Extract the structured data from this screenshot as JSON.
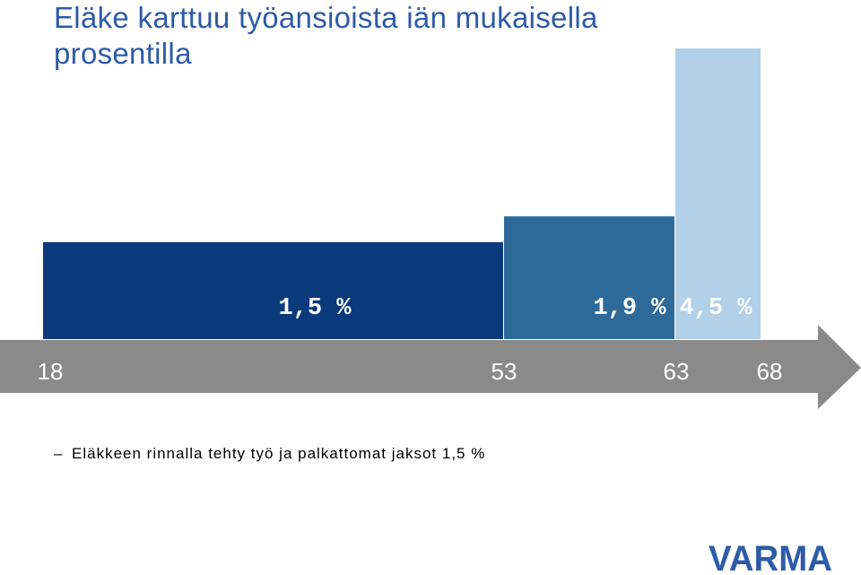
{
  "title": "Eläke karttuu työansioista iän mukaisella prosentilla",
  "chart_data": {
    "type": "bar",
    "x_ticks": [
      "18",
      "53",
      "63",
      "68"
    ],
    "bars": [
      {
        "from_age": 18,
        "to_age": 53,
        "rate": 1.5,
        "label": "1,5 %",
        "color": "#0a3a7c",
        "label_color": "#ffffff"
      },
      {
        "from_age": 53,
        "to_age": 63,
        "rate": 1.9,
        "label": "1,9 %",
        "color": "#2d6a9a",
        "label_color": "#ffffff"
      },
      {
        "from_age": 63,
        "to_age": 68,
        "rate": 4.5,
        "label": "4,5 %",
        "color": "#b2d0e8",
        "label_color": "#ffffff"
      }
    ],
    "axis_color": "#8a8a8a",
    "tick_color": "#ffffff"
  },
  "footnote": {
    "dash": "–",
    "text": "Eläkkeen rinnalla tehty työ ja palkattomat jaksot 1,5 %"
  },
  "logo": {
    "text": "VARMA",
    "color": "#2d5ba7"
  }
}
